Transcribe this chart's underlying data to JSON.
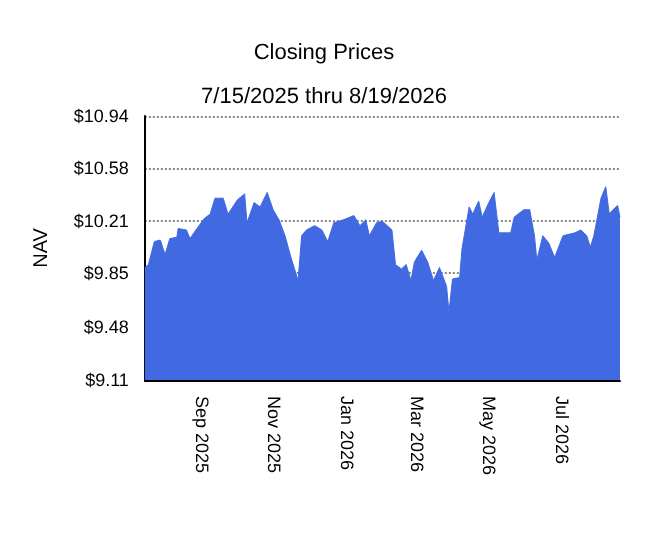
{
  "chart_data": {
    "type": "area",
    "title": "Closing Prices",
    "subtitle": "7/15/2025 thru 8/19/2026",
    "ylabel": "NAV",
    "x": [
      "2025-07-15",
      "2025-07-18",
      "2025-07-23",
      "2025-07-28",
      "2025-08-01",
      "2025-08-05",
      "2025-08-11",
      "2025-08-12",
      "2025-08-19",
      "2025-08-22",
      "2025-08-27",
      "2025-09-03",
      "2025-09-08",
      "2025-09-12",
      "2025-09-19",
      "2025-09-23",
      "2025-10-01",
      "2025-10-07",
      "2025-10-09",
      "2025-10-15",
      "2025-10-20",
      "2025-10-26",
      "2025-10-31",
      "2025-11-05",
      "2025-11-10",
      "2025-11-15",
      "2025-11-21",
      "2025-11-24",
      "2025-11-28",
      "2025-12-05",
      "2025-12-11",
      "2025-12-16",
      "2025-12-21",
      "2025-12-29",
      "2026-01-07",
      "2026-01-12",
      "2026-01-17",
      "2026-01-20",
      "2026-01-26",
      "2026-01-31",
      "2026-02-08",
      "2026-02-11",
      "2026-02-16",
      "2026-02-20",
      "2026-02-24",
      "2026-02-27",
      "2026-03-05",
      "2026-03-10",
      "2026-03-15",
      "2026-03-20",
      "2026-03-26",
      "2026-03-28",
      "2026-03-31",
      "2026-04-06",
      "2026-04-08",
      "2026-04-14",
      "2026-04-17",
      "2026-04-22",
      "2026-04-25",
      "2026-04-30",
      "2026-05-05",
      "2026-05-09",
      "2026-05-19",
      "2026-05-22",
      "2026-05-30",
      "2026-06-04",
      "2026-06-08",
      "2026-06-10",
      "2026-06-15",
      "2026-06-20",
      "2026-06-25",
      "2026-07-02",
      "2026-07-12",
      "2026-07-17",
      "2026-07-22",
      "2026-07-25",
      "2026-07-28",
      "2026-08-03",
      "2026-08-07",
      "2026-08-10",
      "2026-08-13",
      "2026-08-17",
      "2026-08-19"
    ],
    "series": [
      {
        "color": "#4169e1",
        "values": [
          9.89,
          9.91,
          10.07,
          10.08,
          9.98,
          10.09,
          10.1,
          10.16,
          10.15,
          10.09,
          10.15,
          10.23,
          10.26,
          10.37,
          10.37,
          10.26,
          10.36,
          10.4,
          10.2,
          10.34,
          10.31,
          10.41,
          10.29,
          10.22,
          10.11,
          9.96,
          9.8,
          10.11,
          10.15,
          10.18,
          10.15,
          10.07,
          10.2,
          10.22,
          10.25,
          10.18,
          10.22,
          10.11,
          10.2,
          10.21,
          10.15,
          9.91,
          9.88,
          9.91,
          9.8,
          9.93,
          10.01,
          9.93,
          9.8,
          9.89,
          9.76,
          9.58,
          9.81,
          9.82,
          10.02,
          10.31,
          10.26,
          10.35,
          10.24,
          10.33,
          10.41,
          10.13,
          10.13,
          10.24,
          10.29,
          10.29,
          10.11,
          9.94,
          10.11,
          10.06,
          9.96,
          10.11,
          10.13,
          10.15,
          10.11,
          10.03,
          10.11,
          10.37,
          10.45,
          10.26,
          10.29,
          10.32,
          10.24
        ]
      }
    ],
    "xlim": [
      "2025-07-15",
      "2026-08-19"
    ],
    "xticks": [
      {
        "value": "2025-09-01",
        "label": "Sep 2025"
      },
      {
        "value": "2025-11-01",
        "label": "Nov 2025"
      },
      {
        "value": "2026-01-01",
        "label": "Jan 2026"
      },
      {
        "value": "2026-03-01",
        "label": "Mar 2026"
      },
      {
        "value": "2026-05-01",
        "label": "May 2026"
      },
      {
        "value": "2026-07-01",
        "label": "Jul 2026"
      }
    ],
    "ylim": [
      9.11,
      10.94
    ],
    "yticks": [
      {
        "value": 9.11,
        "label": "$9.11"
      },
      {
        "value": 9.48,
        "label": "$9.48"
      },
      {
        "value": 9.85,
        "label": "$9.85"
      },
      {
        "value": 10.21,
        "label": "$10.21"
      },
      {
        "value": 10.58,
        "label": "$10.58"
      },
      {
        "value": 10.94,
        "label": "$10.94"
      }
    ],
    "grid": "y",
    "marker": "none",
    "line_style": "solid"
  }
}
